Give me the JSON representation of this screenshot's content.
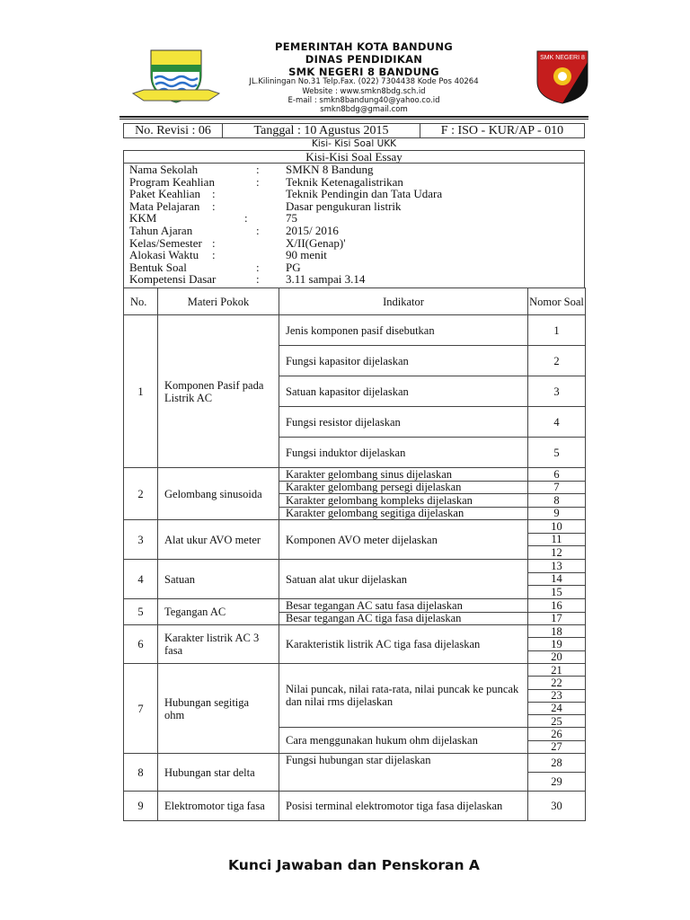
{
  "header": {
    "line1": "PEMERINTAH KOTA BANDUNG",
    "line2": "DINAS PENDIDIKAN",
    "line3": "SMK NEGERI 8 BANDUNG",
    "address": "JL.Kiliningan No.31 Telp.Fax. (022) 7304438 Kode Pos 40264",
    "website": "Website : www.smkn8bdg.sch.id",
    "email1": "E-mail : smkn8bandung40@yahoo.co.id",
    "email2": "smkn8bdg@gmail.com",
    "left_logo_motto": "GEMAH RIPAH WIBAWA MUKTI",
    "right_logo_text": "SMK NEGERI 8"
  },
  "doc_info": {
    "revisi": "No. Revisi : 06",
    "tanggal": "Tanggal : 10 Agustus 2015",
    "form": "F : ISO - KUR/AP - 010"
  },
  "subtitle": "Kisi- Kisi Soal UKK",
  "title": "Kisi-Kisi Soal Essay",
  "info": [
    {
      "label": "Nama Sekolah",
      "value": "SMKN 8 Bandung"
    },
    {
      "label": "Program Keahlian",
      "value": "Teknik Ketenagalistrikan"
    },
    {
      "label": "Paket Keahlian",
      "value": "Teknik Pendingin dan Tata Udara"
    },
    {
      "label": "Mata Pelajaran",
      "value": "Dasar pengukuran listrik"
    },
    {
      "label": "KKM",
      "value": "75"
    },
    {
      "label": "Tahun Ajaran",
      "value": "2015/ 2016"
    },
    {
      "label": "Kelas/Semester",
      "value": "X/II(Genap)'"
    },
    {
      "label": "Alokasi Waktu",
      "value": "90 menit"
    },
    {
      "label": "Bentuk Soal",
      "value": "PG"
    },
    {
      "label": "Kompetensi Dasar",
      "value": "3.11 sampai 3.14"
    }
  ],
  "colon": ":",
  "table": {
    "headers": {
      "no": "No.",
      "materi": "Materi Pokok",
      "indikator": "Indikator",
      "nomor": "Nomor Soal"
    },
    "groups": [
      {
        "no": "1",
        "materi": "Komponen Pasif pada Listrik AC",
        "indikator": [
          "Jenis komponen pasif disebutkan",
          "Fungsi kapasitor dijelaskan",
          "Satuan kapasitor dijelaskan",
          "Fungsi resistor dijelaskan",
          "Fungsi induktor dijelaskan"
        ],
        "nomor": [
          "1",
          "2",
          "3",
          "4",
          "5"
        ]
      },
      {
        "no": "2",
        "materi": "Gelombang sinusoida",
        "indikator": [
          "Karakter gelombang sinus dijelaskan",
          "Karakter gelombang persegi dijelaskan",
          "Karakter gelombang kompleks dijelaskan",
          "Karakter gelombang segitiga dijelaskan"
        ],
        "nomor": [
          "6",
          "7",
          "8",
          "9"
        ]
      },
      {
        "no": "3",
        "materi": "Alat ukur AVO meter",
        "indikator": [
          "Komponen AVO meter dijelaskan"
        ],
        "nomor": [
          "10",
          "11",
          "12"
        ]
      },
      {
        "no": "4",
        "materi": "Satuan",
        "indikator": [
          "Satuan alat ukur dijelaskan"
        ],
        "nomor": [
          "13",
          "14",
          "15"
        ]
      },
      {
        "no": "5",
        "materi": "Tegangan AC",
        "indikator": [
          "Besar tegangan AC satu fasa dijelaskan",
          "Besar tegangan AC tiga fasa dijelaskan"
        ],
        "nomor": [
          "16",
          "17"
        ]
      },
      {
        "no": "6",
        "materi": "Karakter listrik AC 3 fasa",
        "indikator": [
          "Karakteristik listrik AC tiga fasa dijelaskan"
        ],
        "nomor": [
          "18",
          "19",
          "20"
        ]
      },
      {
        "no": "7",
        "materi": "Hubungan segitiga ohm",
        "indikator": [
          "Nilai puncak, nilai rata-rata, nilai puncak ke puncak dan nilai rms dijelaskan",
          "Cara menggunakan hukum ohm dijelaskan"
        ],
        "nomor": [
          "21",
          "22",
          "23",
          "24",
          "25",
          "26",
          "27"
        ]
      },
      {
        "no": "8",
        "materi": "Hubungan star delta",
        "indikator": [
          "Fungsi hubungan star dijelaskan"
        ],
        "nomor": [
          "28",
          "29"
        ]
      },
      {
        "no": "9",
        "materi": "Elektromotor tiga fasa",
        "indikator": [
          "Posisi terminal elektromotor tiga fasa dijelaskan"
        ],
        "nomor": [
          "30"
        ]
      }
    ]
  },
  "footer_heading": "Kunci Jawaban dan Penskoran A"
}
